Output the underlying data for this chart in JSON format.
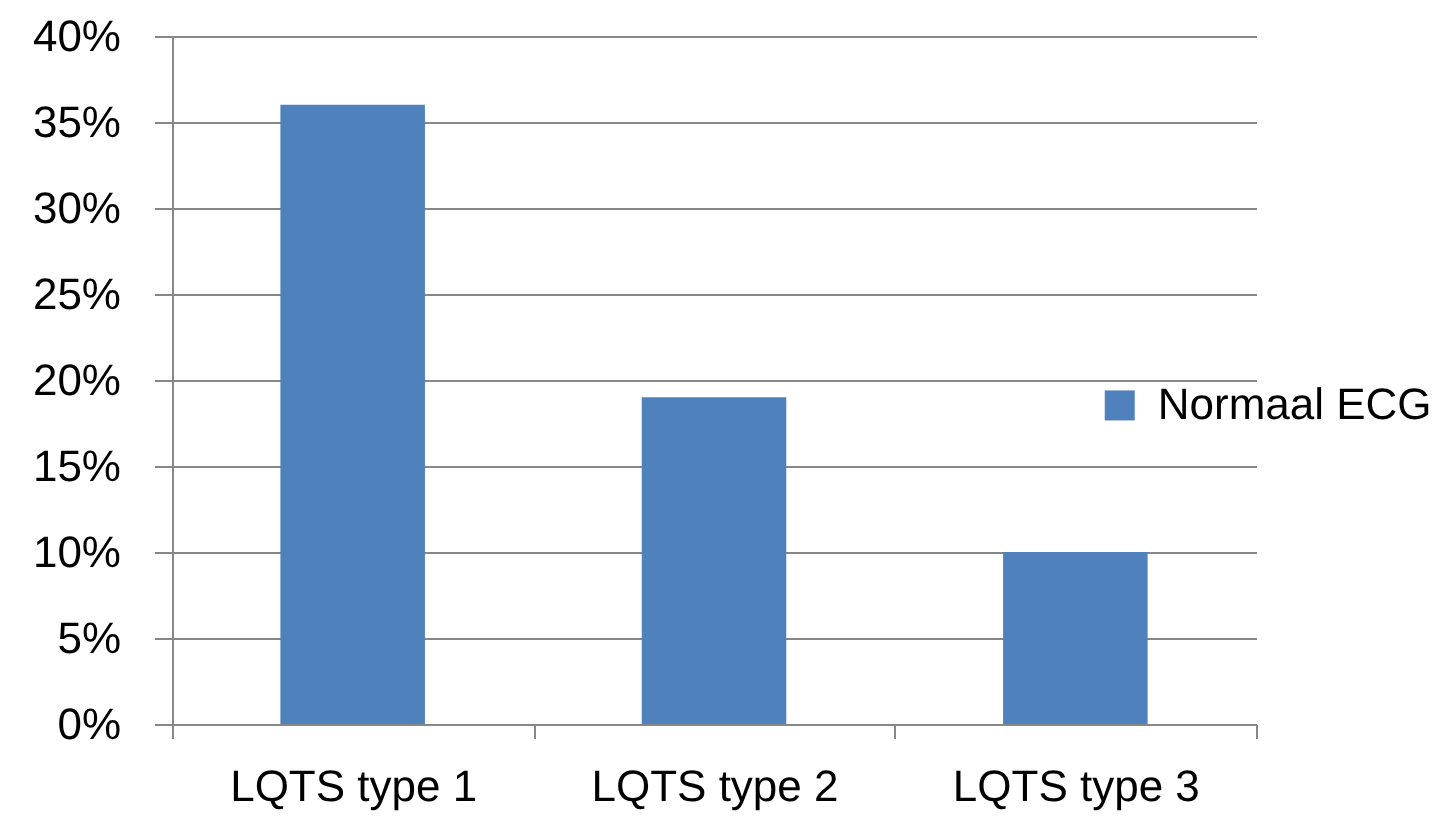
{
  "chart_data": {
    "type": "bar",
    "categories": [
      "LQTS type 1",
      "LQTS type 2",
      "LQTS type 3"
    ],
    "series": [
      {
        "name": "Normaal ECG",
        "color": "#4f81bd",
        "values": [
          36,
          19,
          10
        ]
      }
    ],
    "ylim": [
      0,
      40
    ],
    "yticks": [
      {
        "value": 0,
        "label": "0%"
      },
      {
        "value": 5,
        "label": "5%"
      },
      {
        "value": 10,
        "label": "10%"
      },
      {
        "value": 15,
        "label": "15%"
      },
      {
        "value": 20,
        "label": "20%"
      },
      {
        "value": 25,
        "label": "25%"
      },
      {
        "value": 30,
        "label": "30%"
      },
      {
        "value": 35,
        "label": "35%"
      },
      {
        "value": 40,
        "label": "40%"
      }
    ],
    "grid": "y",
    "legend": "right"
  }
}
